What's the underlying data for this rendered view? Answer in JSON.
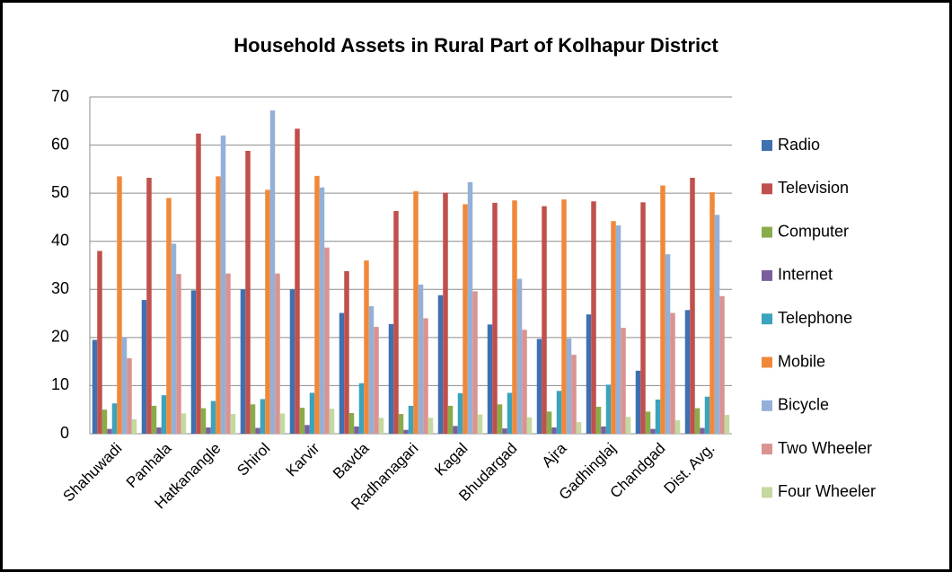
{
  "chart_data": {
    "type": "bar",
    "title": "Household Assets in Rural Part of Kolhapur District",
    "categories": [
      "Shahuwadi",
      "Panhala",
      "Hatkanangle",
      "Shirol",
      "Karvir",
      "Bavda",
      "Radhanagari",
      "Kagal",
      "Bhudargad",
      "Ajra",
      "Gadhinglaj",
      "Chandgad",
      "Dist. Avg."
    ],
    "series": [
      {
        "name": "Radio",
        "color": "#3f70b0",
        "values": [
          19.5,
          27.8,
          29.8,
          30,
          30,
          25.1,
          22.8,
          28.8,
          22.7,
          19.7,
          24.8,
          13.1,
          25.7
        ]
      },
      {
        "name": "Television",
        "color": "#c0504d",
        "values": [
          38,
          53.2,
          62.4,
          58.8,
          63.4,
          33.8,
          46.3,
          50.1,
          48,
          47.3,
          48.3,
          48.1,
          53.2
        ]
      },
      {
        "name": "Computer",
        "color": "#8aab4a",
        "values": [
          5,
          5.8,
          5.3,
          6.1,
          5.4,
          4.3,
          4.1,
          5.8,
          6.1,
          4.6,
          5.6,
          4.6,
          5.3
        ]
      },
      {
        "name": "Internet",
        "color": "#7a5f9e",
        "values": [
          1,
          1.3,
          1.3,
          1.2,
          1.8,
          1.5,
          0.8,
          1.6,
          1.1,
          1.3,
          1.5,
          1,
          1.2
        ]
      },
      {
        "name": "Telephone",
        "color": "#3ca3bd",
        "values": [
          6.3,
          8,
          6.8,
          7.2,
          8.5,
          10.5,
          5.8,
          8.4,
          8.5,
          8.9,
          10.2,
          7.1,
          7.7
        ]
      },
      {
        "name": "Mobile",
        "color": "#f0883a",
        "values": [
          53.5,
          49,
          53.5,
          50.7,
          53.6,
          36,
          50.4,
          47.7,
          48.5,
          48.7,
          44.2,
          51.6,
          50.2
        ]
      },
      {
        "name": "Bicycle",
        "color": "#94b0d6",
        "values": [
          20,
          39.5,
          62,
          67.2,
          51.2,
          26.5,
          31,
          52.3,
          32.2,
          19.8,
          43.3,
          37.3,
          45.5
        ]
      },
      {
        "name": "Two Wheeler",
        "color": "#d99391",
        "values": [
          15.7,
          33.2,
          33.3,
          33.3,
          38.7,
          22.2,
          24,
          29.6,
          21.6,
          16.4,
          22,
          25.1,
          28.6
        ]
      },
      {
        "name": "Four Wheeler",
        "color": "#c4d8a0",
        "values": [
          3,
          4.2,
          4.1,
          4.2,
          5.2,
          3.3,
          3.3,
          4,
          3.4,
          2.4,
          3.5,
          2.8,
          3.9
        ]
      }
    ],
    "ylim": [
      0,
      70
    ],
    "yticks": [
      0,
      10,
      20,
      30,
      40,
      50,
      60,
      70
    ],
    "grid": true,
    "legend": "right"
  }
}
